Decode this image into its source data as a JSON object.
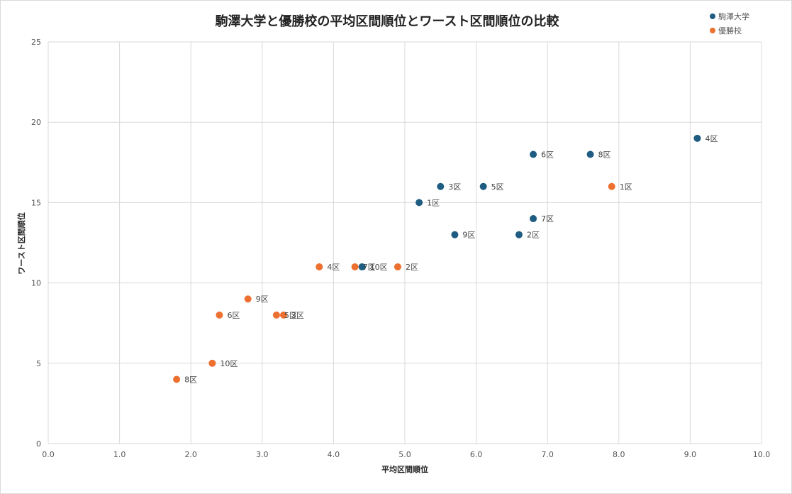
{
  "chart_data": {
    "type": "scatter",
    "title": "駒澤大学と優勝校の平均区間順位とワースト区間順位の比較",
    "xlabel": "平均区間順位",
    "ylabel": "ワースト区間順位",
    "xlim": [
      0,
      10
    ],
    "ylim": [
      0,
      25
    ],
    "x_ticks": [
      "0.0",
      "1.0",
      "2.0",
      "3.0",
      "4.0",
      "5.0",
      "6.0",
      "7.0",
      "8.0",
      "9.0",
      "10.0"
    ],
    "y_ticks": [
      "0",
      "5",
      "10",
      "15",
      "20",
      "25"
    ],
    "grid": true,
    "legend_position": "top-right",
    "series": [
      {
        "name": "駒澤大学",
        "color": "#1f5c82",
        "points": [
          {
            "x": 5.2,
            "y": 15,
            "label": "1区"
          },
          {
            "x": 6.6,
            "y": 13,
            "label": "2区"
          },
          {
            "x": 5.5,
            "y": 16,
            "label": "3区"
          },
          {
            "x": 9.1,
            "y": 19,
            "label": "4区"
          },
          {
            "x": 6.1,
            "y": 16,
            "label": "5区"
          },
          {
            "x": 6.8,
            "y": 18,
            "label": "6区"
          },
          {
            "x": 6.8,
            "y": 14,
            "label": "7区"
          },
          {
            "x": 7.6,
            "y": 18,
            "label": "8区"
          },
          {
            "x": 5.7,
            "y": 13,
            "label": "9区"
          },
          {
            "x": 4.4,
            "y": 11,
            "label": "10区"
          }
        ]
      },
      {
        "name": "優勝校",
        "color": "#ed7030",
        "points": [
          {
            "x": 7.9,
            "y": 16,
            "label": "1区"
          },
          {
            "x": 4.9,
            "y": 11,
            "label": "2区"
          },
          {
            "x": 3.3,
            "y": 8,
            "label": "3区"
          },
          {
            "x": 3.8,
            "y": 11,
            "label": "4区"
          },
          {
            "x": 3.2,
            "y": 8,
            "label": "5区"
          },
          {
            "x": 2.4,
            "y": 8,
            "label": "6区"
          },
          {
            "x": 4.3,
            "y": 11,
            "label": "7区"
          },
          {
            "x": 1.8,
            "y": 4,
            "label": "8区"
          },
          {
            "x": 2.8,
            "y": 9,
            "label": "9区"
          },
          {
            "x": 2.3,
            "y": 5,
            "label": "10区"
          }
        ]
      }
    ]
  }
}
